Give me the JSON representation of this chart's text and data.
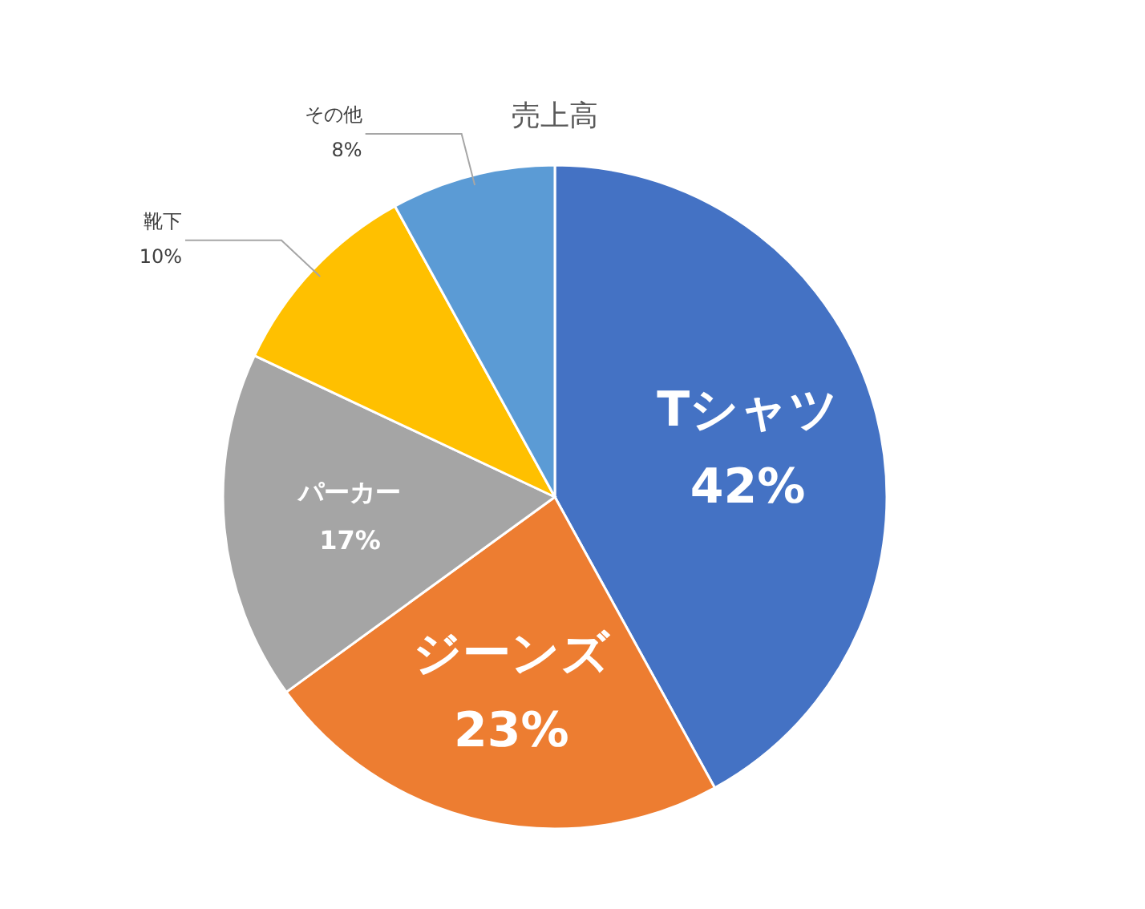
{
  "chart_data": {
    "type": "pie",
    "title": "売上高",
    "categories": [
      "Tシャツ",
      "ジーンズ",
      "パーカー",
      "靴下",
      "その他"
    ],
    "values": [
      42,
      23,
      17,
      10,
      8
    ],
    "colors": [
      "#4472c4",
      "#ed7d31",
      "#a5a5a5",
      "#ffc000",
      "#5b9bd5"
    ],
    "value_labels": [
      "42%",
      "23%",
      "17%",
      "10%",
      "8%"
    ]
  }
}
